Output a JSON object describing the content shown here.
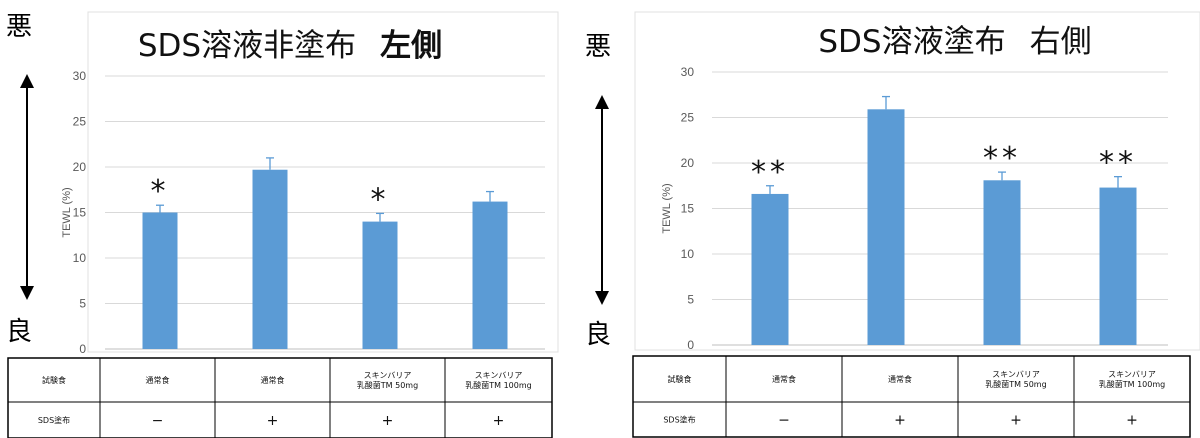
{
  "side_labels": {
    "bad": "悪",
    "good": "良"
  },
  "colors": {
    "bar": "#5b9bd5",
    "error": "#5b9bd5",
    "grid": "#d9d9d9",
    "axis": "#bfbfbf",
    "table": "#000000"
  },
  "chart_data": [
    {
      "type": "bar",
      "title": "SDS溶液非塗布 左側",
      "title_main": "SDS溶液非塗布",
      "title_side": "左側",
      "ylabel": "TEWL (%)",
      "ylim": [
        0,
        30
      ],
      "yticks": [
        "0",
        "5",
        "10",
        "15",
        "20",
        "25",
        "30"
      ],
      "grid": true,
      "values": [
        15.0,
        19.7,
        14.0,
        16.2
      ],
      "errors": [
        0.8,
        1.3,
        0.9,
        1.1
      ],
      "significance": [
        "*",
        "",
        "*",
        ""
      ],
      "table": {
        "row_headers": [
          "試験食",
          "SDS塗布"
        ],
        "food": [
          "通常食",
          "通常食",
          "スキンバリア\n乳酸菌TM 50mg",
          "スキンバリア\n乳酸菌TM 100mg"
        ],
        "sds": [
          "−",
          "+",
          "+",
          "+"
        ]
      }
    },
    {
      "type": "bar",
      "title": "SDS溶液塗布 右側",
      "title_main": "SDS溶液塗布",
      "title_side": "右側",
      "ylabel": "TEWL (%)",
      "ylim": [
        0,
        30
      ],
      "yticks": [
        "0",
        "5",
        "10",
        "15",
        "20",
        "25",
        "30"
      ],
      "grid": true,
      "values": [
        16.6,
        25.9,
        18.1,
        17.3
      ],
      "errors": [
        0.9,
        1.4,
        0.9,
        1.2
      ],
      "significance": [
        "**",
        "",
        "**",
        "**"
      ],
      "table": {
        "row_headers": [
          "試験食",
          "SDS塗布"
        ],
        "food": [
          "通常食",
          "通常食",
          "スキンバリア\n乳酸菌TM 50mg",
          "スキンバリア\n乳酸菌TM 100mg"
        ],
        "sds": [
          "−",
          "+",
          "+",
          "+"
        ]
      }
    }
  ]
}
